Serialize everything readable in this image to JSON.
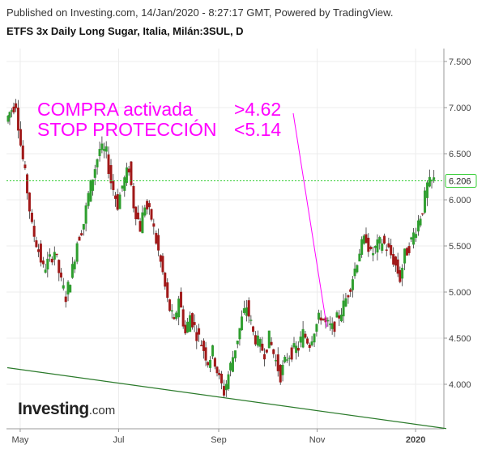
{
  "header": {
    "published": "Published on Investing.com, 14/Jan/2020 - 8:27:17 GMT, Powered by TradingView.",
    "title": "ETFS 3x Daily Long Sugar, Italia, Milán:3SUL, D"
  },
  "logo": {
    "brand": "Investing",
    "suffix": ".com"
  },
  "colors": {
    "up": "#2e9e2e",
    "down": "#a01818",
    "annotation": "#ff00ff",
    "trendline": "#2a7a2a",
    "priceline": "#33cc33",
    "grid": "#ececec"
  },
  "chart_data": {
    "type": "candlestick",
    "title": "ETFS 3x Daily Long Sugar, Italia, Milán:3SUL, D",
    "ylim": [
      3.55,
      7.65
    ],
    "y_ticks": [
      "7.500",
      "7.000",
      "6.500",
      "6.000",
      "5.500",
      "5.000",
      "4.500",
      "4.000"
    ],
    "x_labels": [
      "May",
      "Jul",
      "Sep",
      "Nov",
      "2020"
    ],
    "last_price": "6.206",
    "annotations": [
      "COMPRA activada",
      ">4.62",
      "STOP PROTECCIÓN",
      "<5.14"
    ],
    "trendline": {
      "start": [
        "2019-04-23",
        4.18
      ],
      "end": [
        "2020-01-20",
        3.52
      ]
    },
    "close_path": [
      [
        "2019-04-23",
        6.85
      ],
      [
        "2019-04-25",
        6.95
      ],
      [
        "2019-04-29",
        7.05
      ],
      [
        "2019-05-02",
        6.6
      ],
      [
        "2019-05-06",
        6.1
      ],
      [
        "2019-05-09",
        5.7
      ],
      [
        "2019-05-13",
        5.45
      ],
      [
        "2019-05-16",
        5.25
      ],
      [
        "2019-05-20",
        5.35
      ],
      [
        "2019-05-23",
        5.45
      ],
      [
        "2019-05-27",
        5.1
      ],
      [
        "2019-05-30",
        4.95
      ],
      [
        "2019-06-03",
        5.25
      ],
      [
        "2019-06-06",
        5.55
      ],
      [
        "2019-06-10",
        5.75
      ],
      [
        "2019-06-13",
        6.05
      ],
      [
        "2019-06-17",
        6.35
      ],
      [
        "2019-06-20",
        6.55
      ],
      [
        "2019-06-24",
        6.5
      ],
      [
        "2019-06-27",
        6.2
      ],
      [
        "2019-07-01",
        5.95
      ],
      [
        "2019-07-04",
        6.15
      ],
      [
        "2019-07-08",
        6.35
      ],
      [
        "2019-07-11",
        5.95
      ],
      [
        "2019-07-15",
        5.7
      ],
      [
        "2019-07-18",
        5.95
      ],
      [
        "2019-07-22",
        5.8
      ],
      [
        "2019-07-25",
        5.55
      ],
      [
        "2019-07-29",
        5.2
      ],
      [
        "2019-08-01",
        4.9
      ],
      [
        "2019-08-05",
        4.65
      ],
      [
        "2019-08-08",
        4.95
      ],
      [
        "2019-08-12",
        4.55
      ],
      [
        "2019-08-15",
        4.75
      ],
      [
        "2019-08-19",
        4.55
      ],
      [
        "2019-08-22",
        4.45
      ],
      [
        "2019-08-26",
        4.25
      ],
      [
        "2019-08-29",
        4.35
      ],
      [
        "2019-09-02",
        4.05
      ],
      [
        "2019-09-05",
        3.92
      ],
      [
        "2019-09-09",
        4.2
      ],
      [
        "2019-09-12",
        4.4
      ],
      [
        "2019-09-16",
        4.7
      ],
      [
        "2019-09-19",
        4.85
      ],
      [
        "2019-09-23",
        4.55
      ],
      [
        "2019-09-26",
        4.45
      ],
      [
        "2019-09-30",
        4.35
      ],
      [
        "2019-10-03",
        4.5
      ],
      [
        "2019-10-07",
        4.25
      ],
      [
        "2019-10-10",
        4.1
      ],
      [
        "2019-10-14",
        4.3
      ],
      [
        "2019-10-17",
        4.35
      ],
      [
        "2019-10-21",
        4.4
      ],
      [
        "2019-10-24",
        4.55
      ],
      [
        "2019-10-28",
        4.45
      ],
      [
        "2019-10-31",
        4.6
      ],
      [
        "2019-11-04",
        4.75
      ],
      [
        "2019-11-07",
        4.65
      ],
      [
        "2019-11-11",
        4.6
      ],
      [
        "2019-11-14",
        4.7
      ],
      [
        "2019-11-18",
        4.85
      ],
      [
        "2019-11-21",
        5.0
      ],
      [
        "2019-11-25",
        5.25
      ],
      [
        "2019-11-28",
        5.45
      ],
      [
        "2019-12-02",
        5.6
      ],
      [
        "2019-12-05",
        5.4
      ],
      [
        "2019-12-09",
        5.5
      ],
      [
        "2019-12-12",
        5.55
      ],
      [
        "2019-12-16",
        5.45
      ],
      [
        "2019-12-19",
        5.35
      ],
      [
        "2019-12-23",
        5.15
      ],
      [
        "2019-12-26",
        5.4
      ],
      [
        "2019-12-30",
        5.55
      ],
      [
        "2020-01-02",
        5.7
      ],
      [
        "2020-01-06",
        5.9
      ],
      [
        "2020-01-09",
        6.15
      ],
      [
        "2020-01-13",
        6.206
      ]
    ]
  }
}
